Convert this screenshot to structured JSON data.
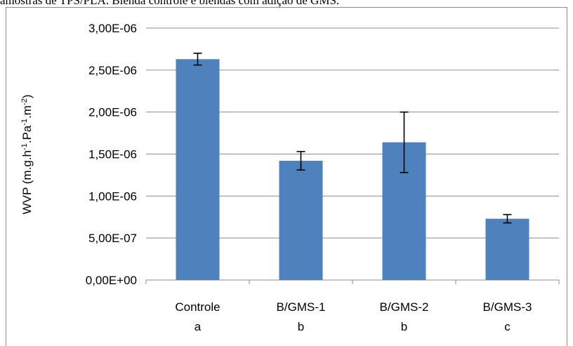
{
  "caption": "amostras de TPS/PLA. Blenda controle e blendas com adição de GMS.",
  "chart_data": {
    "type": "bar",
    "categories": [
      "Controle",
      "B/GMS-1",
      "B/GMS-2",
      "B/GMS-3"
    ],
    "significance_letters": [
      "a",
      "b",
      "b",
      "c"
    ],
    "values": [
      2.63e-06,
      1.42e-06,
      1.64e-06,
      7.3e-07
    ],
    "error": [
      7e-08,
      1.1e-07,
      3.6e-07,
      5e-08
    ],
    "ylim": [
      0,
      3e-06
    ],
    "yticks": [
      0,
      5e-07,
      1e-06,
      1.5e-06,
      2e-06,
      2.5e-06,
      3e-06
    ],
    "ytick_labels": [
      "0,00E+00",
      "5,00E-07",
      "1,00E-06",
      "1,50E-06",
      "2,00E-06",
      "2,50E-06",
      "3,00E-06"
    ],
    "ylabel": "WVP (m.g.h-1.Pa-1.m-2)",
    "bar_color": "#4f81bd",
    "gridlines": true,
    "legend": "none"
  }
}
